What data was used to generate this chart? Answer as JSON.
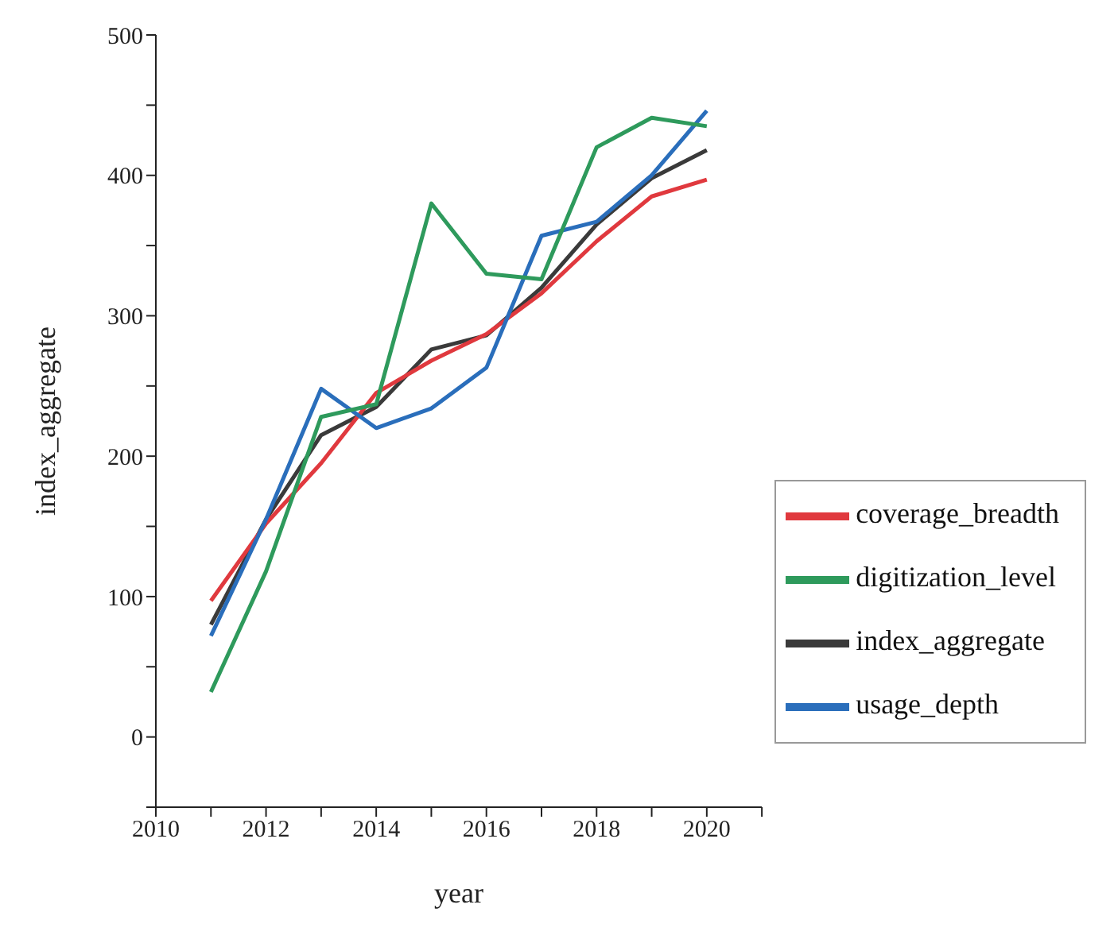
{
  "chart_data": {
    "type": "line",
    "xlabel": "year",
    "ylabel": "index_aggregate",
    "x": [
      2011,
      2012,
      2013,
      2014,
      2015,
      2016,
      2017,
      2018,
      2019,
      2020
    ],
    "series": [
      {
        "name": "index_aggregate",
        "color": "#3a3a3a",
        "values": [
          80,
          155,
          215,
          235,
          276,
          286,
          320,
          365,
          398,
          418
        ]
      },
      {
        "name": "coverage_breadth",
        "color": "#e0393e",
        "values": [
          97,
          152,
          195,
          245,
          268,
          287,
          316,
          353,
          385,
          397
        ]
      },
      {
        "name": "usage_depth",
        "color": "#2a6ebb",
        "values": [
          72,
          155,
          248,
          220,
          234,
          263,
          357,
          367,
          400,
          446
        ]
      },
      {
        "name": "digitization_level",
        "color": "#2e9a5c",
        "values": [
          32,
          118,
          228,
          237,
          380,
          330,
          326,
          420,
          441,
          435
        ]
      }
    ],
    "xlim": [
      2010,
      2021
    ],
    "xticks": [
      2010,
      {
        "value": 2011,
        "label": null
      },
      2012,
      {
        "value": 2013,
        "label": null
      },
      2014,
      {
        "value": 2015,
        "label": null
      },
      2016,
      {
        "value": 2017,
        "label": null
      },
      2018,
      {
        "value": 2019,
        "label": null
      },
      2020,
      {
        "value": 2021,
        "label": null
      }
    ],
    "ylim": [
      -50,
      500
    ],
    "yticks": [
      {
        "value": -50,
        "label": null
      },
      0,
      {
        "value": 50,
        "label": null
      },
      100,
      {
        "value": 150,
        "label": null
      },
      200,
      {
        "value": 250,
        "label": null
      },
      300,
      {
        "value": 350,
        "label": null
      },
      400,
      {
        "value": 450,
        "label": null
      },
      500
    ],
    "grid": false,
    "legend": "bottom right",
    "marker": "none",
    "line_style": "solid"
  }
}
